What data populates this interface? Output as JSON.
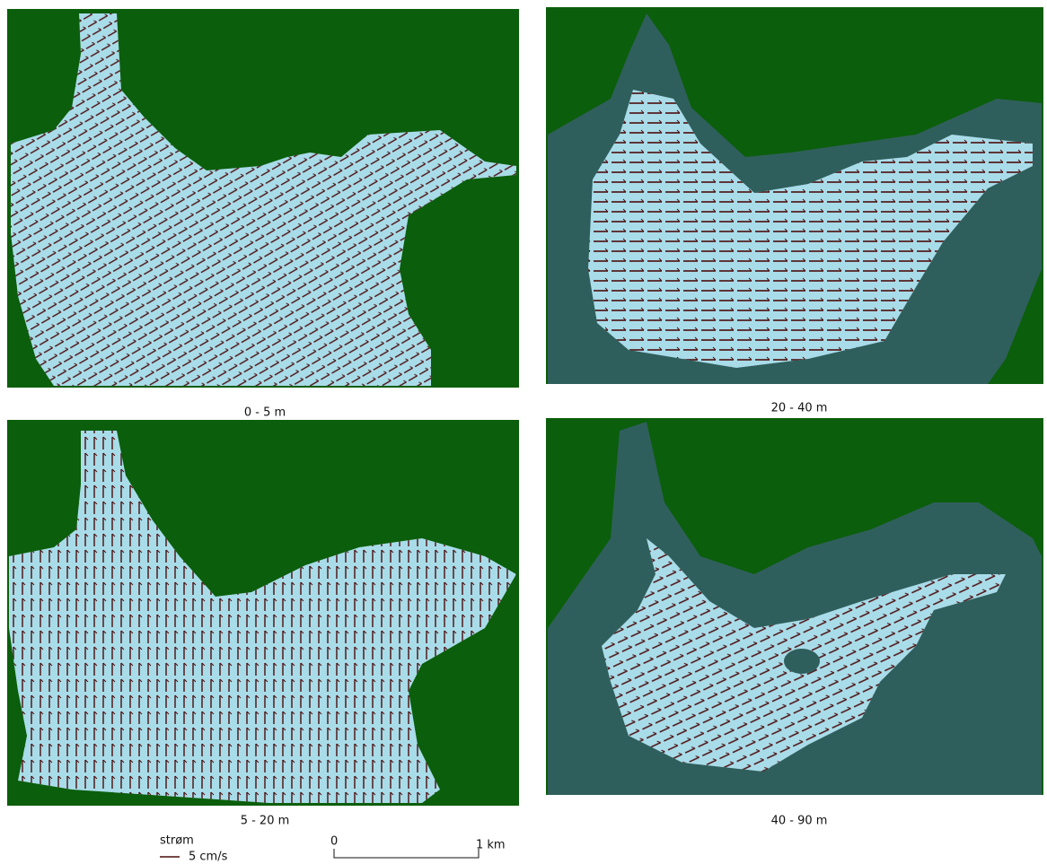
{
  "panels": [
    {
      "caption": "0 - 5 m"
    },
    {
      "caption": "20 - 40 m"
    },
    {
      "caption": "5 - 20 m"
    },
    {
      "caption": "40 - 90 m"
    }
  ],
  "legend": {
    "title": "strøm",
    "label": "5 cm/s"
  },
  "scale_bar": {
    "start": "0",
    "end": "1 km"
  }
}
